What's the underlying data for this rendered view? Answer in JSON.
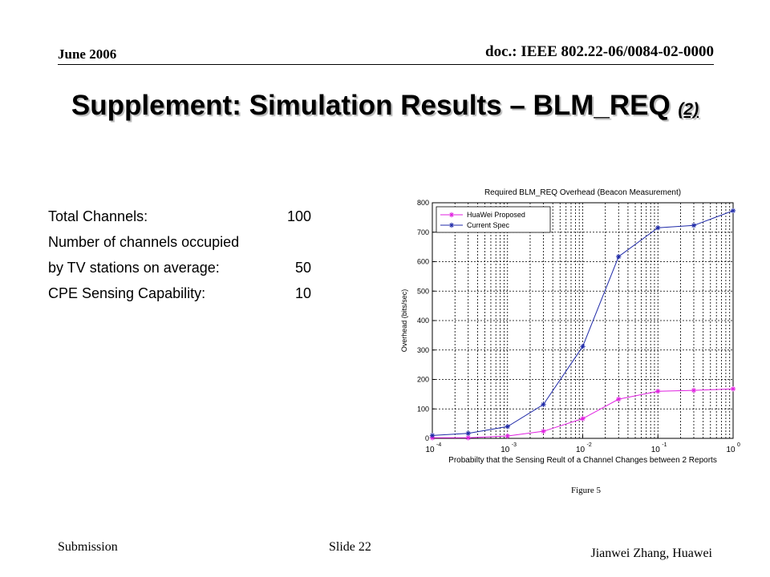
{
  "header": {
    "date": "June 2006",
    "doc": "doc.: IEEE 802.22-06/0084-02-0000"
  },
  "slide": {
    "title_main": "Supplement: Simulation Results – BLM_REQ ",
    "title_sub": "(2)"
  },
  "params": [
    {
      "label": "Total Channels:",
      "value": "100"
    },
    {
      "label": "Number of channels occupied",
      "value": ""
    },
    {
      "label": "by TV stations on average:",
      "value": "50"
    },
    {
      "label": "CPE Sensing Capability:",
      "value": "10"
    }
  ],
  "figure_caption": "Figure 5",
  "footer": {
    "submission": "Submission",
    "slide": "Slide 22",
    "author": "Jianwei Zhang, Huawei"
  },
  "chart_data": {
    "type": "line",
    "title": "Required BLM_REQ Overhead (Beacon Measurement)",
    "xlabel": "Probabilty that the Sensing Reult of a Channel Changes between 2 Reports",
    "ylabel": "Overhead (bits/sec)",
    "x_scale": "log",
    "xlim": [
      0.0001,
      1
    ],
    "ylim": [
      0,
      800
    ],
    "grid": true,
    "legend_position": "top-left",
    "x_ticks": [
      {
        "value": 0.0001,
        "base": "10",
        "exp": "-4"
      },
      {
        "value": 0.001,
        "base": "10",
        "exp": "-3"
      },
      {
        "value": 0.01,
        "base": "10",
        "exp": "-2"
      },
      {
        "value": 0.1,
        "base": "10",
        "exp": "-1"
      },
      {
        "value": 1,
        "base": "10",
        "exp": "0"
      }
    ],
    "y_ticks": [
      0,
      100,
      200,
      300,
      400,
      500,
      600,
      700,
      800
    ],
    "x": [
      0.0001,
      0.0003,
      0.001,
      0.003,
      0.01,
      0.03,
      0.1,
      0.3,
      1
    ],
    "series": [
      {
        "name": "HuaWei Proposed",
        "color": "#e020e0",
        "marker": "star",
        "values": [
          2,
          2,
          8,
          24,
          67,
          133,
          160,
          163,
          168
        ]
      },
      {
        "name": "Current Spec",
        "color": "#1f2aa8",
        "marker": "star",
        "values": [
          10,
          17,
          40,
          115,
          312,
          617,
          715,
          723,
          773
        ]
      }
    ]
  }
}
